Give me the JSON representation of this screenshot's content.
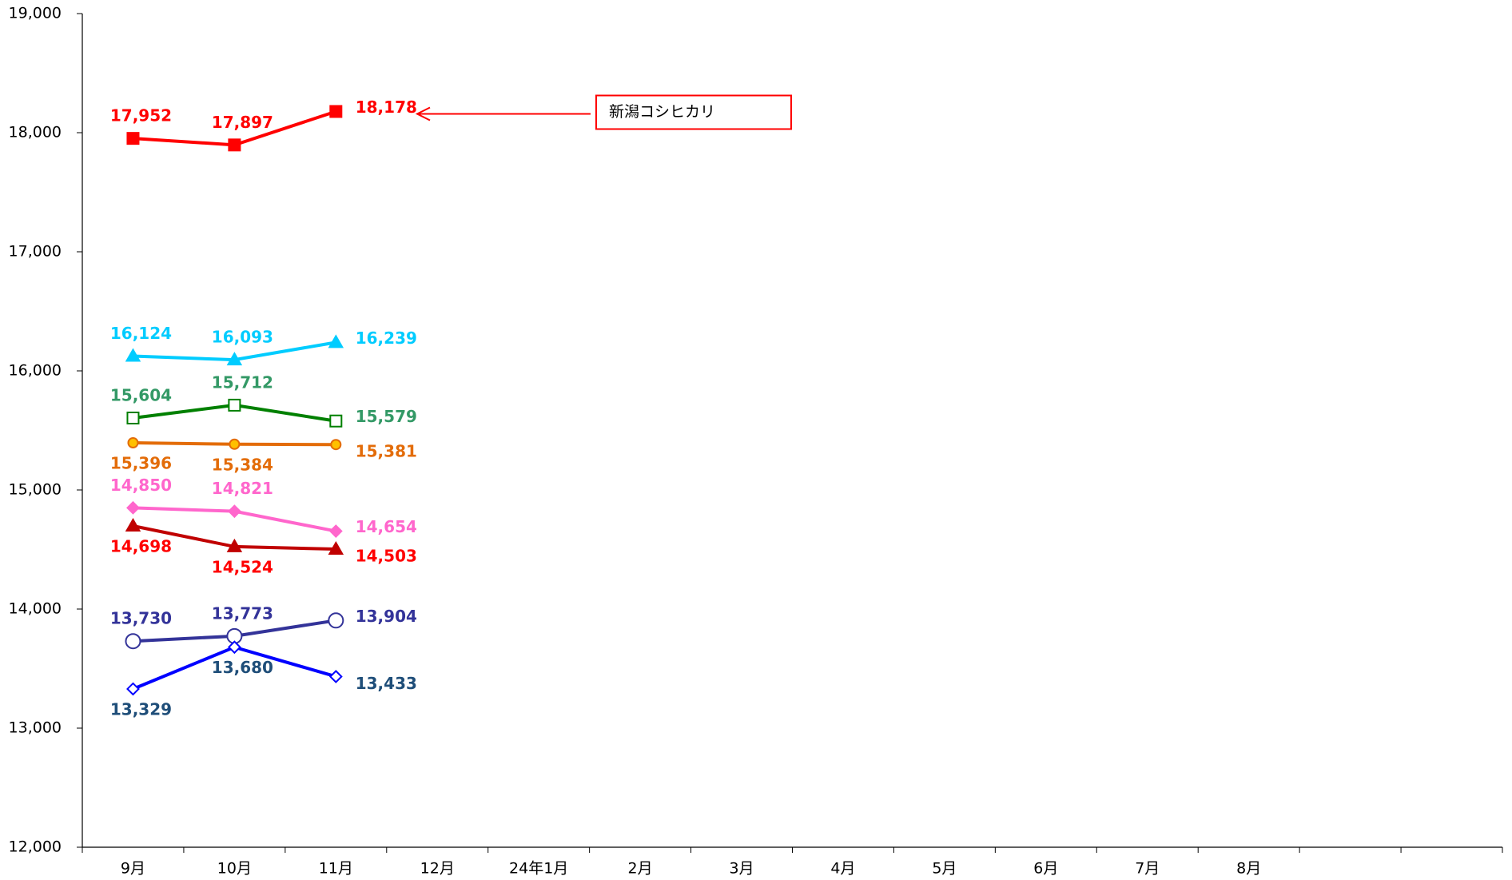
{
  "chart_data": {
    "type": "line",
    "categories": [
      "9月",
      "10月",
      "11月",
      "12月",
      "24年1月",
      "2月",
      "3月",
      "4月",
      "5月",
      "6月",
      "7月",
      "8月",
      null,
      null
    ],
    "ylim": [
      12000,
      19000
    ],
    "yticks": [
      {
        "value": 12000,
        "label": "12,000"
      },
      {
        "value": 13000,
        "label": "13,000"
      },
      {
        "value": 14000,
        "label": "14,000"
      },
      {
        "value": 15000,
        "label": "15,000"
      },
      {
        "value": 16000,
        "label": "16,000"
      },
      {
        "value": 17000,
        "label": "17,000"
      },
      {
        "value": 18000,
        "label": "18,000"
      },
      {
        "value": 19000,
        "label": "19,000"
      }
    ],
    "grid": false,
    "series": [
      {
        "name": "新潟コシヒカリ",
        "color": "#ff0000",
        "label_color": "#ff0000",
        "marker": "square",
        "values": [
          17952,
          17897,
          18178,
          null,
          null,
          null,
          null,
          null,
          null,
          null,
          null,
          null,
          null,
          null
        ],
        "value_labels": [
          "17,952",
          "17,897",
          "18,178",
          null,
          null,
          null,
          null,
          null,
          null,
          null,
          null,
          null,
          null,
          null
        ]
      },
      {
        "color": "#00ccff",
        "label_color": "#00ccff",
        "marker": "triangle",
        "values": [
          16124,
          16093,
          16239,
          null,
          null,
          null,
          null,
          null,
          null,
          null,
          null,
          null,
          null,
          null
        ],
        "value_labels": [
          "16,124",
          "16,093",
          "16,239",
          null,
          null,
          null,
          null,
          null,
          null,
          null,
          null,
          null,
          null,
          null
        ]
      },
      {
        "color": "#008000",
        "label_color": "#339966",
        "marker": "open-square",
        "values": [
          15604,
          15712,
          15579,
          null,
          null,
          null,
          null,
          null,
          null,
          null,
          null,
          null,
          null,
          null
        ],
        "value_labels": [
          "15,604",
          "15,712",
          "15,579",
          null,
          null,
          null,
          null,
          null,
          null,
          null,
          null,
          null,
          null,
          null
        ]
      },
      {
        "color": "#e36c09",
        "label_color": "#e36c09",
        "marker": "circle",
        "values": [
          15396,
          15384,
          15381,
          null,
          null,
          null,
          null,
          null,
          null,
          null,
          null,
          null,
          null,
          null
        ],
        "value_labels": [
          "15,396",
          "15,384",
          "15,381",
          null,
          null,
          null,
          null,
          null,
          null,
          null,
          null,
          null,
          null,
          null
        ]
      },
      {
        "color": "#ff66cc",
        "label_color": "#ff66cc",
        "marker": "diamond",
        "values": [
          14850,
          14821,
          14654,
          null,
          null,
          null,
          null,
          null,
          null,
          null,
          null,
          null,
          null,
          null
        ],
        "value_labels": [
          "14,850",
          "14,821",
          "14,654",
          null,
          null,
          null,
          null,
          null,
          null,
          null,
          null,
          null,
          null,
          null
        ]
      },
      {
        "color": "#c00000",
        "label_color": "#ff0000",
        "marker": "triangle",
        "values": [
          14698,
          14524,
          14503,
          null,
          null,
          null,
          null,
          null,
          null,
          null,
          null,
          null,
          null,
          null
        ],
        "value_labels": [
          "14,698",
          "14,524",
          "14,503",
          null,
          null,
          null,
          null,
          null,
          null,
          null,
          null,
          null,
          null,
          null
        ]
      },
      {
        "color": "#333399",
        "label_color": "#333399",
        "marker": "open-circle",
        "values": [
          13730,
          13773,
          13904,
          null,
          null,
          null,
          null,
          null,
          null,
          null,
          null,
          null,
          null,
          null
        ],
        "value_labels": [
          "13,730",
          "13,773",
          "13,904",
          null,
          null,
          null,
          null,
          null,
          null,
          null,
          null,
          null,
          null,
          null
        ]
      },
      {
        "color": "#0000ff",
        "label_color": "#1f4e79",
        "marker": "open-diamond",
        "values": [
          13329,
          13680,
          13433,
          null,
          null,
          null,
          null,
          null,
          null,
          null,
          null,
          null,
          null,
          null
        ],
        "value_labels": [
          "13,329",
          "13,680",
          "13,433",
          null,
          null,
          null,
          null,
          null,
          null,
          null,
          null,
          null,
          null,
          null
        ]
      }
    ]
  }
}
